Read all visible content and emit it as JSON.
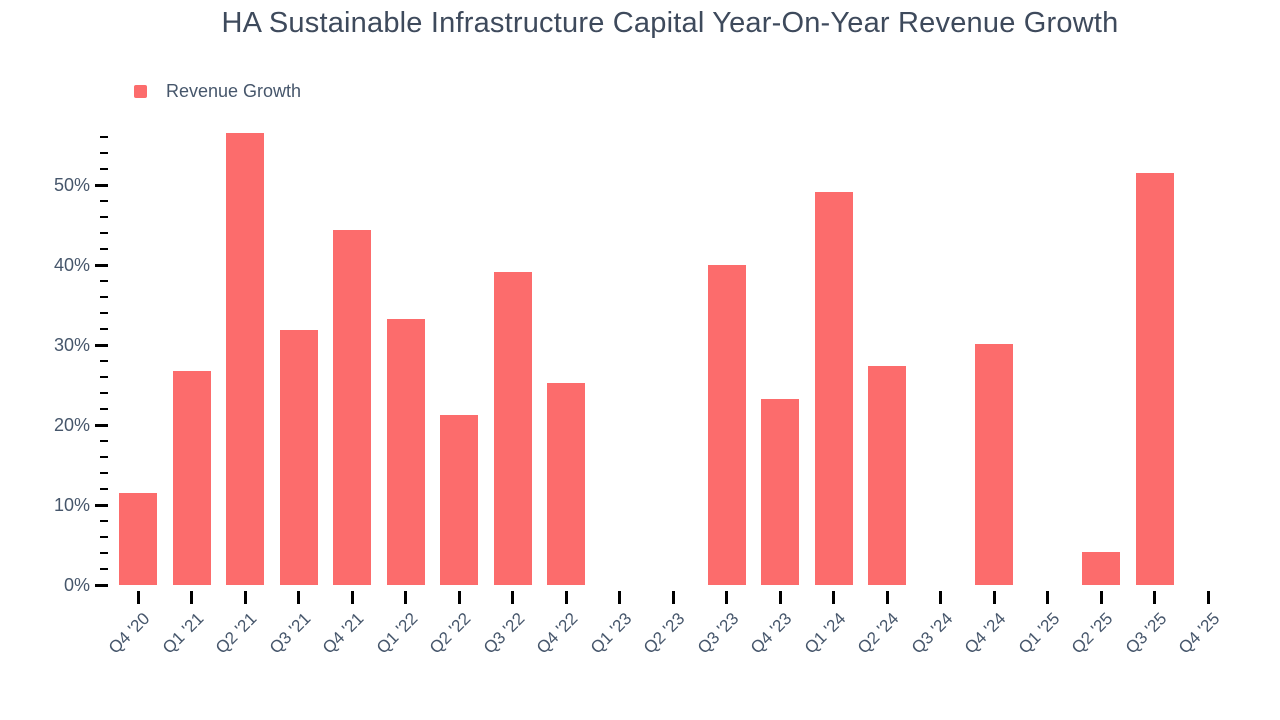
{
  "chart_data": {
    "type": "bar",
    "title": "HA Sustainable Infrastructure Capital Year-On-Year Revenue Growth",
    "legend_label": "Revenue Growth",
    "legend_position": "top-left",
    "unit": "%",
    "categories": [
      "Q4 '20",
      "Q1 '21",
      "Q2 '21",
      "Q3 '21",
      "Q4 '21",
      "Q1 '22",
      "Q2 '22",
      "Q3 '22",
      "Q4 '22",
      "Q1 '23",
      "Q2 '23",
      "Q3 '23",
      "Q4 '23",
      "Q1 '24",
      "Q2 '24",
      "Q3 '24",
      "Q4 '24",
      "Q1 '25",
      "Q2 '25",
      "Q3 '25",
      "Q4 '25"
    ],
    "series": [
      {
        "name": "Revenue Growth",
        "values": [
          11.5,
          26.8,
          56.5,
          31.9,
          44.4,
          33.3,
          21.3,
          39.1,
          25.3,
          null,
          null,
          40.0,
          23.3,
          49.1,
          27.4,
          null,
          30.1,
          null,
          4.1,
          51.5,
          null
        ]
      }
    ],
    "xlabel": "",
    "ylabel": "",
    "ylim": [
      0,
      57.5
    ],
    "y_major_ticks": [
      0,
      10,
      20,
      30,
      40,
      50
    ],
    "y_minor_tick_step": 2,
    "y_max_tick": 56,
    "grid": false
  },
  "colors": {
    "background": "#ffffff",
    "bar": "#fc6c6c",
    "title_text": "#3e4a5c",
    "axis_text": "#46566b",
    "tick": "#000000"
  }
}
